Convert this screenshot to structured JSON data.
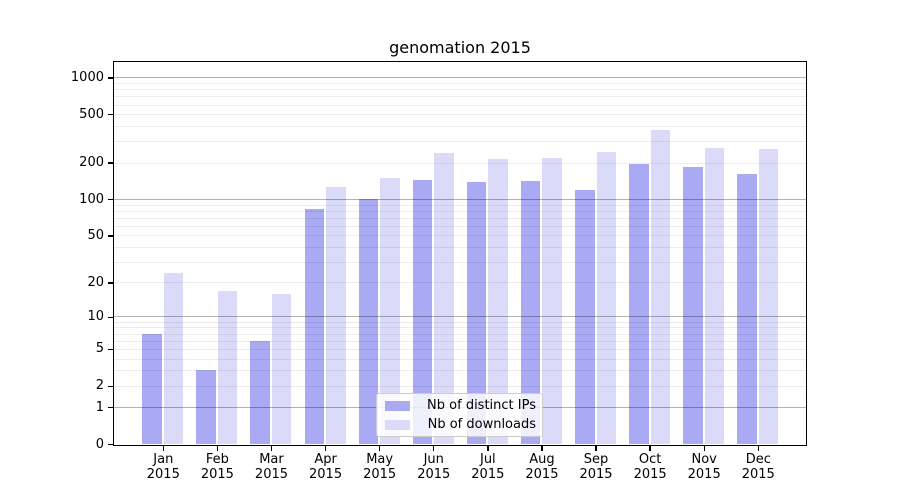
{
  "chart_data": {
    "type": "bar",
    "title": "genomation 2015",
    "categories": [
      "Jan",
      "Feb",
      "Mar",
      "Apr",
      "May",
      "Jun",
      "Jul",
      "Aug",
      "Sep",
      "Oct",
      "Nov",
      "Dec"
    ],
    "year": "2015",
    "series": [
      {
        "name": "Nb of distinct IPs",
        "color": "#a9a9f4",
        "values": [
          7,
          3,
          6,
          83,
          101,
          144,
          138,
          140,
          120,
          196,
          185,
          160
        ]
      },
      {
        "name": "Nb of downloads",
        "color": "#dbdbf9",
        "values": [
          24,
          17,
          16,
          126,
          150,
          242,
          215,
          220,
          245,
          368,
          262,
          257
        ]
      }
    ],
    "yscale": "log1p",
    "yticks": [
      0,
      1,
      2,
      5,
      10,
      20,
      50,
      100,
      200,
      500,
      1000
    ],
    "ylim": [
      0,
      1340
    ],
    "grid": {
      "major_lines": [
        1,
        10,
        100,
        1000
      ],
      "minor_lines": "2-9 of each decade",
      "orientation": "horizontal"
    },
    "legend_position": "lower center"
  }
}
